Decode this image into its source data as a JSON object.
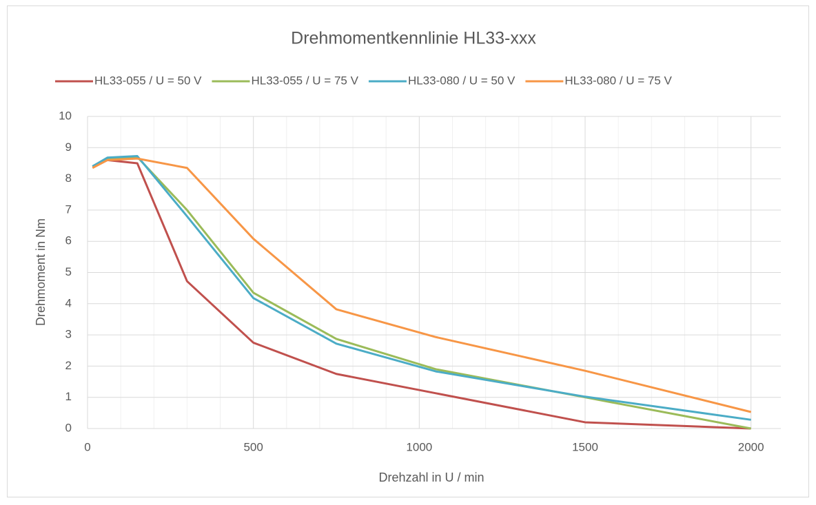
{
  "chart_data": {
    "type": "line",
    "title": "Drehmomentkennlinie HL33-xxx",
    "x_label": "Drehzahl in U / min",
    "y_label": "Drehmoment in Nm",
    "x": [
      15,
      60,
      150,
      300,
      500,
      750,
      1050,
      1500,
      2000
    ],
    "series": [
      {
        "name": "HL33-055 / U = 50 V",
        "color": "#c0504d",
        "values": [
          8.4,
          8.6,
          8.5,
          4.72,
          2.75,
          1.75,
          1.13,
          0.2,
          0.0
        ]
      },
      {
        "name": "HL33-055 / U = 75 V",
        "color": "#9bbb59",
        "values": [
          8.4,
          8.65,
          8.7,
          7.0,
          4.35,
          2.87,
          1.9,
          1.0,
          0.0
        ]
      },
      {
        "name": "HL33-080 / U = 50 V",
        "color": "#4bacc6",
        "values": [
          8.4,
          8.68,
          8.73,
          6.8,
          4.18,
          2.72,
          1.83,
          1.02,
          0.28
        ]
      },
      {
        "name": "HL33-080 / U = 75 V",
        "color": "#f79646",
        "values": [
          8.35,
          8.6,
          8.65,
          8.35,
          6.08,
          3.82,
          2.93,
          1.85,
          0.53
        ]
      }
    ],
    "xlim": [
      0,
      2090
    ],
    "ylim": [
      0,
      10
    ],
    "xticks": [
      0,
      500,
      1000,
      1500,
      2000
    ],
    "xminorticks": [
      100,
      200,
      300,
      400,
      600,
      700,
      800,
      900,
      1100,
      1200,
      1300,
      1400,
      1600,
      1700,
      1800,
      1900
    ],
    "yticks": [
      0,
      1,
      2,
      3,
      4,
      5,
      6,
      7,
      8,
      9,
      10
    ],
    "grid": true,
    "legend": "top"
  }
}
